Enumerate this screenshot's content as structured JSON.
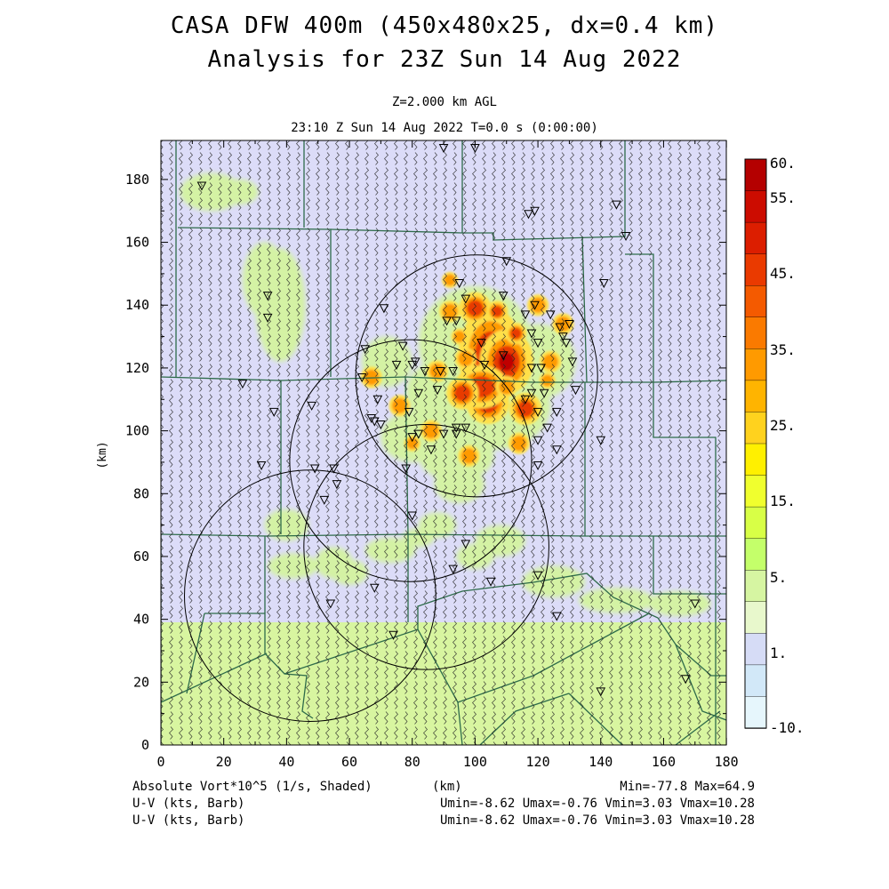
{
  "title_line1": "CASA DFW 400m (450x480x25, dx=0.4 km)",
  "title_line2": "Analysis for 23Z Sun 14 Aug 2022",
  "level_label": "Z=2.000 km AGL",
  "time_label": "23:10 Z Sun 14 Aug 2022    T=0.0 s (0:00:00)",
  "y_axis_label": "(km)",
  "x_axis_label": "(km)",
  "x_ticks": [
    "0",
    "20",
    "40",
    "60",
    "80",
    "100",
    "120",
    "140",
    "160",
    "180"
  ],
  "y_ticks": [
    "0",
    "20",
    "40",
    "60",
    "80",
    "100",
    "120",
    "140",
    "160",
    "180"
  ],
  "colorbar_labels": [
    "60.",
    "55.",
    "45.",
    "35.",
    "25.",
    "15.",
    "5.",
    "1.",
    "-10."
  ],
  "colorbar_colors": [
    "#b40000",
    "#cc0c00",
    "#dc1e00",
    "#ea3a00",
    "#f45a00",
    "#fa7a00",
    "#ff9a00",
    "#ffb400",
    "#ffd21e",
    "#fff000",
    "#f0ff2e",
    "#d8ff46",
    "#c4ff6a",
    "#d6f5a2",
    "#e8f8cc",
    "#d6dcf6",
    "#d2e8f8",
    "#e6f6fc"
  ],
  "field_line": "Absolute Vort*10^5 (1/s, Shaded)",
  "field_unit": "(km)",
  "field_stats": "Min=-77.8 Max=64.9",
  "wind_line1_label": "U-V (kts, Barb)",
  "wind_line1_stats": "Umin=-8.62 Umax=-0.76 Vmin=3.03 Vmax=10.28",
  "wind_line2_label": "U-V (kts, Barb)",
  "wind_line2_stats": "Umin=-8.62 Umax=-0.76 Vmin=3.03 Vmax=10.28",
  "radar_ranges": [
    {
      "name": "radar-1",
      "center_km": [
        100.5,
        117.5
      ],
      "radius_km": 38.5
    },
    {
      "name": "radar-2",
      "center_km": [
        79.5,
        90.5
      ],
      "radius_km": 38.5
    },
    {
      "name": "radar-3",
      "center_km": [
        47.5,
        47.5
      ],
      "radius_km": 40
    },
    {
      "name": "radar-4",
      "center_km": [
        84.5,
        63
      ],
      "radius_km": 39
    }
  ],
  "stations_km": [
    [
      13,
      178
    ],
    [
      34,
      143
    ],
    [
      34,
      136
    ],
    [
      26,
      115
    ],
    [
      36,
      106
    ],
    [
      32,
      89
    ],
    [
      48,
      108
    ],
    [
      49,
      88
    ],
    [
      55,
      88
    ],
    [
      56,
      83
    ],
    [
      52,
      78
    ],
    [
      54,
      45
    ],
    [
      65,
      126
    ],
    [
      71,
      139
    ],
    [
      64,
      117
    ],
    [
      67,
      104
    ],
    [
      68,
      103
    ],
    [
      70,
      102
    ],
    [
      69,
      110
    ],
    [
      77,
      127
    ],
    [
      75,
      121
    ],
    [
      80,
      121
    ],
    [
      81,
      122
    ],
    [
      84,
      119
    ],
    [
      82,
      112
    ],
    [
      79,
      106
    ],
    [
      80,
      98
    ],
    [
      82,
      99
    ],
    [
      89,
      119
    ],
    [
      88,
      113
    ],
    [
      91,
      135
    ],
    [
      94,
      135
    ],
    [
      93,
      119
    ],
    [
      95,
      147
    ],
    [
      97,
      142
    ],
    [
      102,
      128
    ],
    [
      103,
      121
    ],
    [
      109,
      124
    ],
    [
      109,
      143
    ],
    [
      110,
      154
    ],
    [
      116,
      137
    ],
    [
      118,
      131
    ],
    [
      119,
      140
    ],
    [
      120,
      128
    ],
    [
      118,
      120
    ],
    [
      121,
      120
    ],
    [
      118,
      112
    ],
    [
      116,
      110
    ],
    [
      122,
      112
    ],
    [
      120,
      106
    ],
    [
      124,
      137
    ],
    [
      127,
      133
    ],
    [
      128,
      130
    ],
    [
      129,
      128
    ],
    [
      131,
      122
    ],
    [
      132,
      113
    ],
    [
      130,
      134
    ],
    [
      123,
      101
    ],
    [
      126,
      106
    ],
    [
      120,
      97
    ],
    [
      120,
      89
    ],
    [
      126,
      94
    ],
    [
      90,
      99
    ],
    [
      94,
      99
    ],
    [
      94,
      101
    ],
    [
      86,
      94
    ],
    [
      97,
      101
    ],
    [
      78,
      88
    ],
    [
      80,
      73
    ],
    [
      68,
      50
    ],
    [
      74,
      35
    ],
    [
      93,
      56
    ],
    [
      97,
      64
    ],
    [
      105,
      52
    ],
    [
      120,
      54
    ],
    [
      126,
      41
    ],
    [
      140,
      17
    ],
    [
      140,
      97
    ],
    [
      141,
      147
    ],
    [
      145,
      172
    ],
    [
      148,
      162
    ],
    [
      167,
      21
    ],
    [
      170,
      45
    ],
    [
      90,
      190
    ],
    [
      119,
      170
    ],
    [
      117,
      169
    ],
    [
      100,
      190
    ]
  ],
  "green_patches_km": [
    [
      16,
      176,
      10,
      6
    ],
    [
      38,
      140,
      8,
      18
    ],
    [
      33,
      148,
      7,
      12
    ],
    [
      25,
      176,
      6,
      4
    ],
    [
      40,
      70,
      7,
      5
    ],
    [
      42,
      57,
      8,
      4
    ],
    [
      55,
      58,
      6,
      5
    ],
    [
      60,
      55,
      6,
      4
    ],
    [
      73,
      62,
      8,
      4
    ],
    [
      82,
      66,
      5,
      3
    ],
    [
      88,
      70,
      6,
      4
    ],
    [
      95,
      83,
      8,
      6
    ],
    [
      100,
      60,
      6,
      4
    ],
    [
      108,
      65,
      8,
      5
    ],
    [
      125,
      52,
      10,
      5
    ],
    [
      145,
      46,
      12,
      4
    ],
    [
      165,
      45,
      10,
      4
    ],
    [
      106,
      108,
      18,
      14
    ],
    [
      100,
      128,
      18,
      18
    ],
    [
      120,
      122,
      12,
      12
    ],
    [
      88,
      112,
      10,
      10
    ],
    [
      80,
      98,
      10,
      8
    ],
    [
      72,
      122,
      8,
      8
    ],
    [
      94,
      92,
      12,
      8
    ]
  ],
  "vort_cells_km": [
    [
      105,
      124,
      6,
      9,
      3
    ],
    [
      110,
      122,
      5,
      6,
      3
    ],
    [
      104,
      109,
      4,
      4,
      3
    ],
    [
      102,
      114,
      5,
      4,
      2
    ],
    [
      96,
      112,
      3,
      3,
      2
    ],
    [
      116,
      107,
      3,
      3,
      2
    ],
    [
      100,
      139,
      3,
      3,
      2
    ],
    [
      107,
      138,
      2,
      2,
      2
    ],
    [
      113,
      131,
      2,
      2,
      2
    ],
    [
      124,
      122,
      2,
      2,
      1
    ],
    [
      92,
      138,
      2,
      2,
      1
    ],
    [
      97,
      123,
      2,
      2,
      1
    ],
    [
      88,
      119,
      2,
      2,
      1
    ],
    [
      86,
      100,
      2,
      2,
      1
    ],
    [
      98,
      92,
      2,
      2,
      1
    ],
    [
      120,
      140,
      2,
      2,
      1
    ],
    [
      110,
      114,
      2,
      2,
      1
    ],
    [
      76,
      108,
      2,
      2,
      1
    ],
    [
      80,
      96,
      1.5,
      1.5,
      1
    ],
    [
      114,
      96,
      2,
      2,
      1
    ],
    [
      67,
      117,
      2,
      2,
      1
    ],
    [
      123,
      116,
      1.5,
      1.5,
      1
    ],
    [
      92,
      148,
      1.5,
      1.5,
      1
    ],
    [
      128,
      134,
      2,
      2,
      1
    ],
    [
      95,
      130,
      1.5,
      1.5,
      1
    ]
  ]
}
